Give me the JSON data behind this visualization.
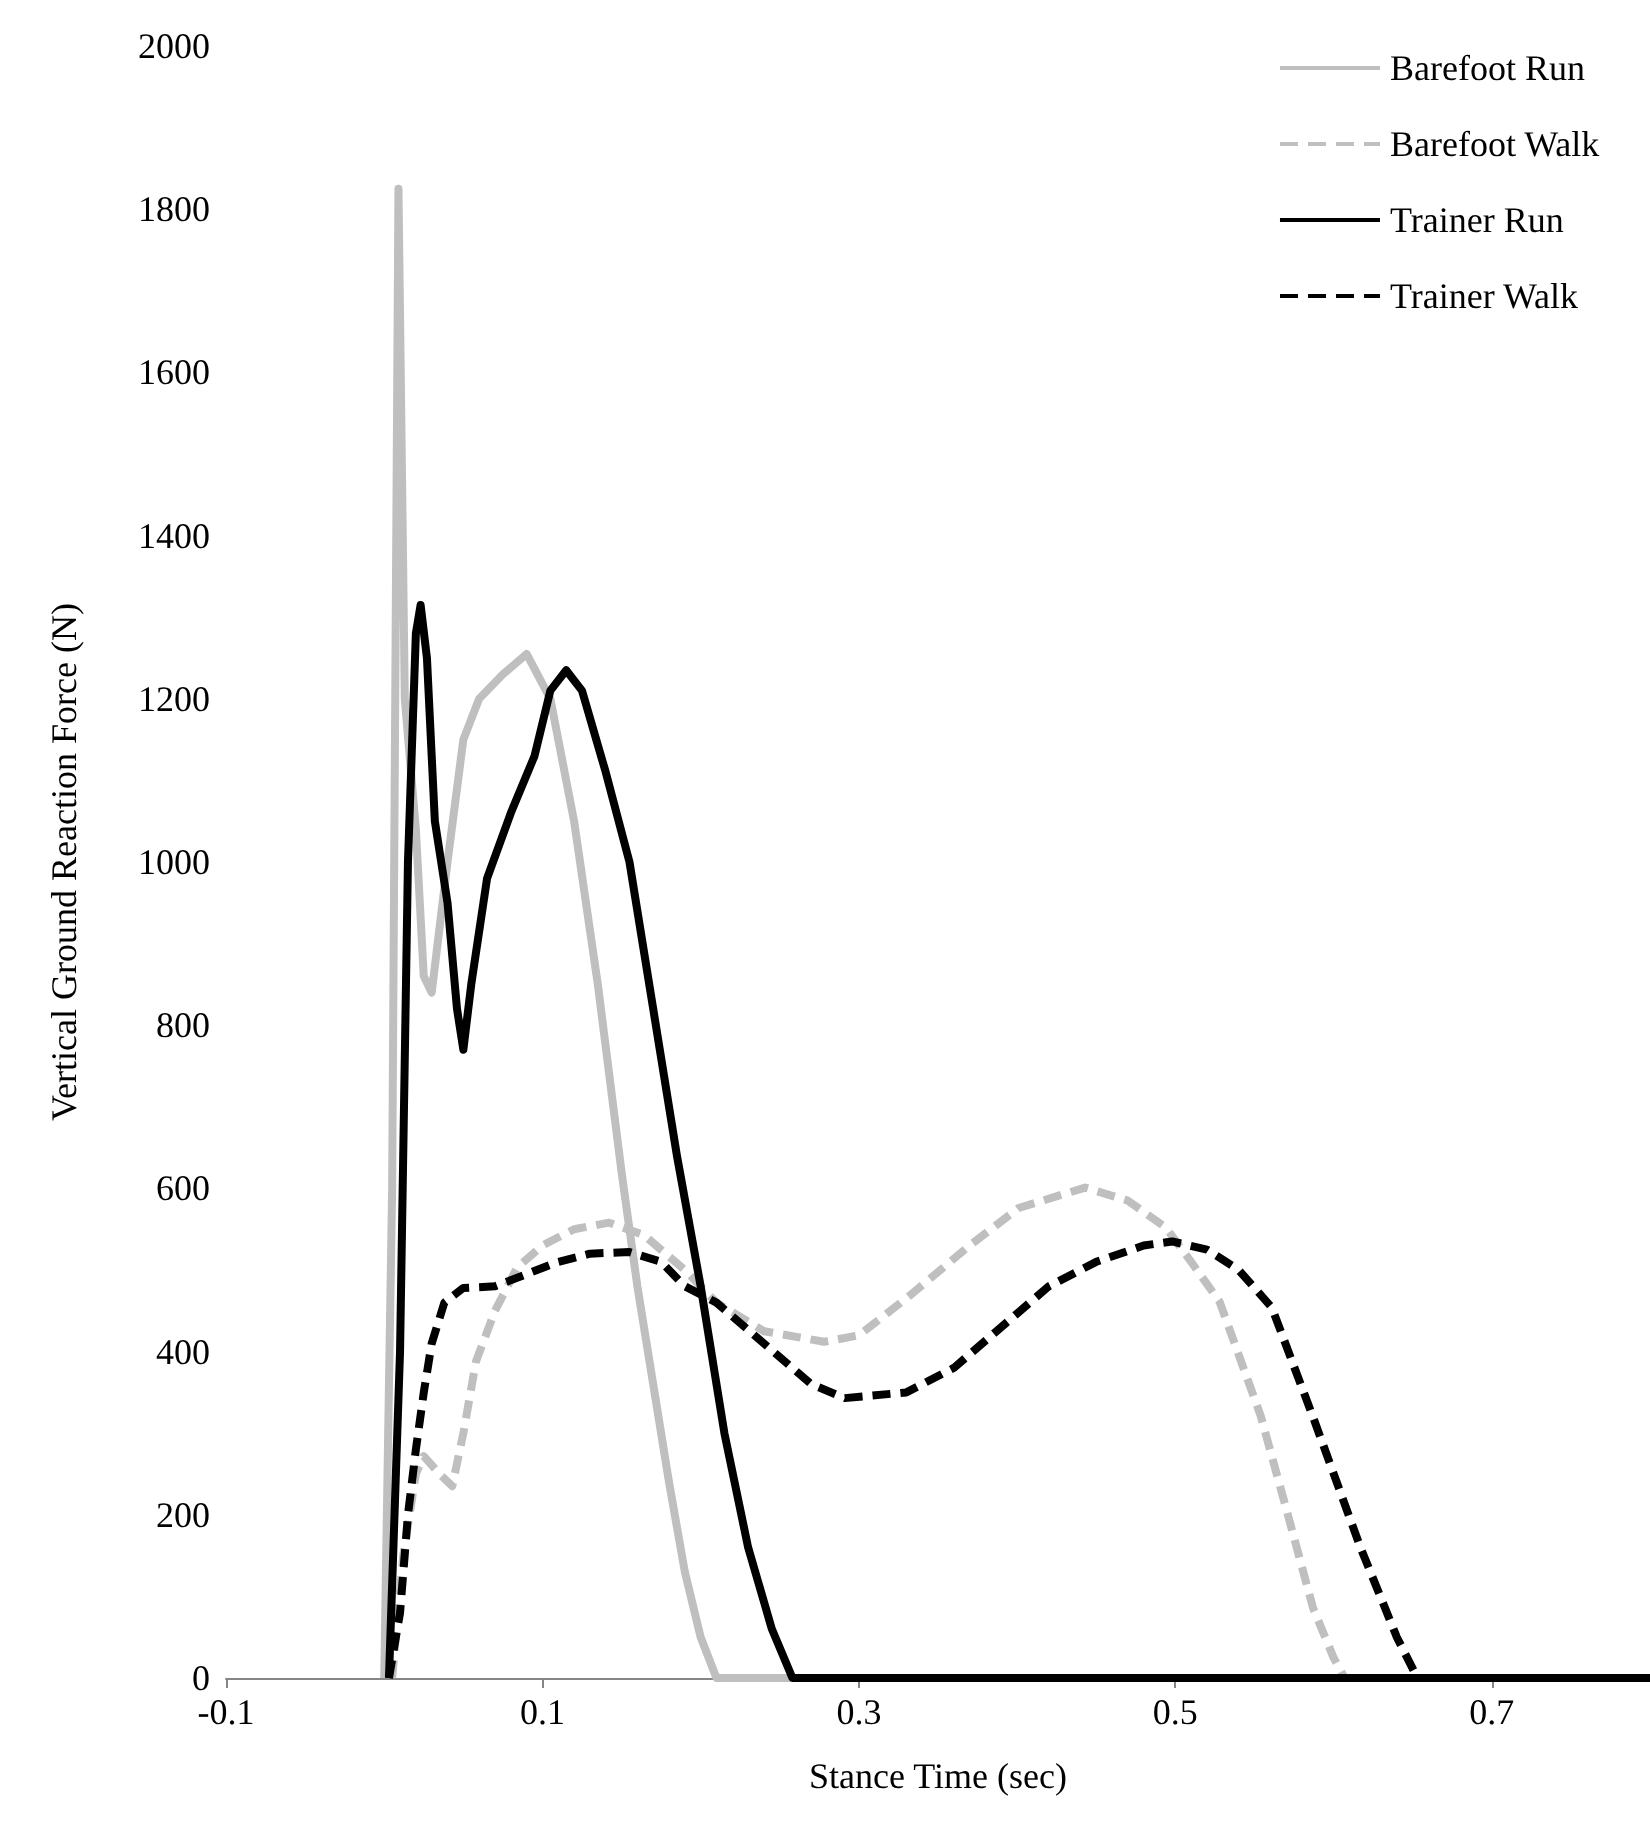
{
  "chart_data": {
    "type": "line",
    "xlabel": "Stance Time (sec)",
    "ylabel": "Vertical Ground Reaction Force (N)",
    "xlim": [
      -0.1,
      0.8
    ],
    "xticks": [
      -0.1,
      0.1,
      0.3,
      0.5,
      0.7
    ],
    "ylim": [
      0,
      2000
    ],
    "yticks": [
      0,
      200,
      400,
      600,
      800,
      1000,
      1200,
      1400,
      1600,
      1800,
      2000
    ],
    "grid": false,
    "legend": "top right",
    "marker": "none",
    "series": [
      {
        "name": "Barefoot Run",
        "color": "#bfbfbf",
        "line_style": "solid",
        "x": [
          0,
          0.005,
          0.009,
          0.013,
          0.02,
          0.025,
          0.03,
          0.04,
          0.05,
          0.06,
          0.075,
          0.09,
          0.105,
          0.12,
          0.135,
          0.15,
          0.16,
          0.17,
          0.18,
          0.19,
          0.2,
          0.21,
          0.8
        ],
        "values": [
          0,
          600,
          1825,
          1200,
          1040,
          860,
          840,
          1000,
          1150,
          1200,
          1230,
          1255,
          1200,
          1050,
          850,
          620,
          480,
          360,
          240,
          130,
          50,
          0,
          0
        ]
      },
      {
        "name": "Barefoot Walk",
        "color": "#bfbfbf",
        "line_style": "dashed",
        "x": [
          0.005,
          0.012,
          0.02,
          0.025,
          0.035,
          0.043,
          0.05,
          0.058,
          0.07,
          0.084,
          0.1,
          0.12,
          0.142,
          0.164,
          0.19,
          0.21,
          0.24,
          0.278,
          0.3,
          0.333,
          0.37,
          0.401,
          0.443,
          0.47,
          0.494,
          0.51,
          0.528,
          0.554,
          0.57,
          0.587,
          0.6,
          0.607,
          0.8
        ],
        "values": [
          0,
          150,
          250,
          272,
          250,
          235,
          300,
          388,
          450,
          503,
          530,
          550,
          558,
          543,
          500,
          460,
          425,
          412,
          420,
          470,
          530,
          576,
          601,
          585,
          552,
          510,
          461,
          321,
          208,
          86,
          25,
          0,
          0
        ]
      },
      {
        "name": "Trainer Run",
        "color": "#000000",
        "line_style": "solid",
        "x": [
          0.003,
          0.01,
          0.015,
          0.02,
          0.023,
          0.027,
          0.032,
          0.04,
          0.046,
          0.05,
          0.055,
          0.065,
          0.08,
          0.095,
          0.105,
          0.115,
          0.125,
          0.14,
          0.155,
          0.17,
          0.185,
          0.2,
          0.215,
          0.23,
          0.245,
          0.258,
          0.8
        ],
        "values": [
          0,
          400,
          1000,
          1280,
          1315,
          1250,
          1050,
          950,
          820,
          770,
          850,
          980,
          1060,
          1130,
          1210,
          1235,
          1210,
          1110,
          1000,
          820,
          640,
          480,
          300,
          160,
          60,
          0,
          0
        ]
      },
      {
        "name": "Trainer Walk",
        "color": "#000000",
        "line_style": "dashed",
        "x": [
          0.003,
          0.01,
          0.015,
          0.02,
          0.025,
          0.03,
          0.038,
          0.05,
          0.07,
          0.09,
          0.11,
          0.13,
          0.155,
          0.175,
          0.19,
          0.21,
          0.24,
          0.27,
          0.291,
          0.33,
          0.36,
          0.39,
          0.42,
          0.45,
          0.48,
          0.498,
          0.52,
          0.54,
          0.561,
          0.587,
          0.617,
          0.64,
          0.653,
          0.8
        ],
        "values": [
          0,
          80,
          200,
          280,
          350,
          410,
          460,
          478,
          480,
          495,
          510,
          520,
          522,
          510,
          480,
          460,
          410,
          360,
          343,
          350,
          380,
          430,
          480,
          510,
          530,
          535,
          525,
          500,
          454,
          320,
          160,
          50,
          0,
          0
        ]
      }
    ]
  }
}
